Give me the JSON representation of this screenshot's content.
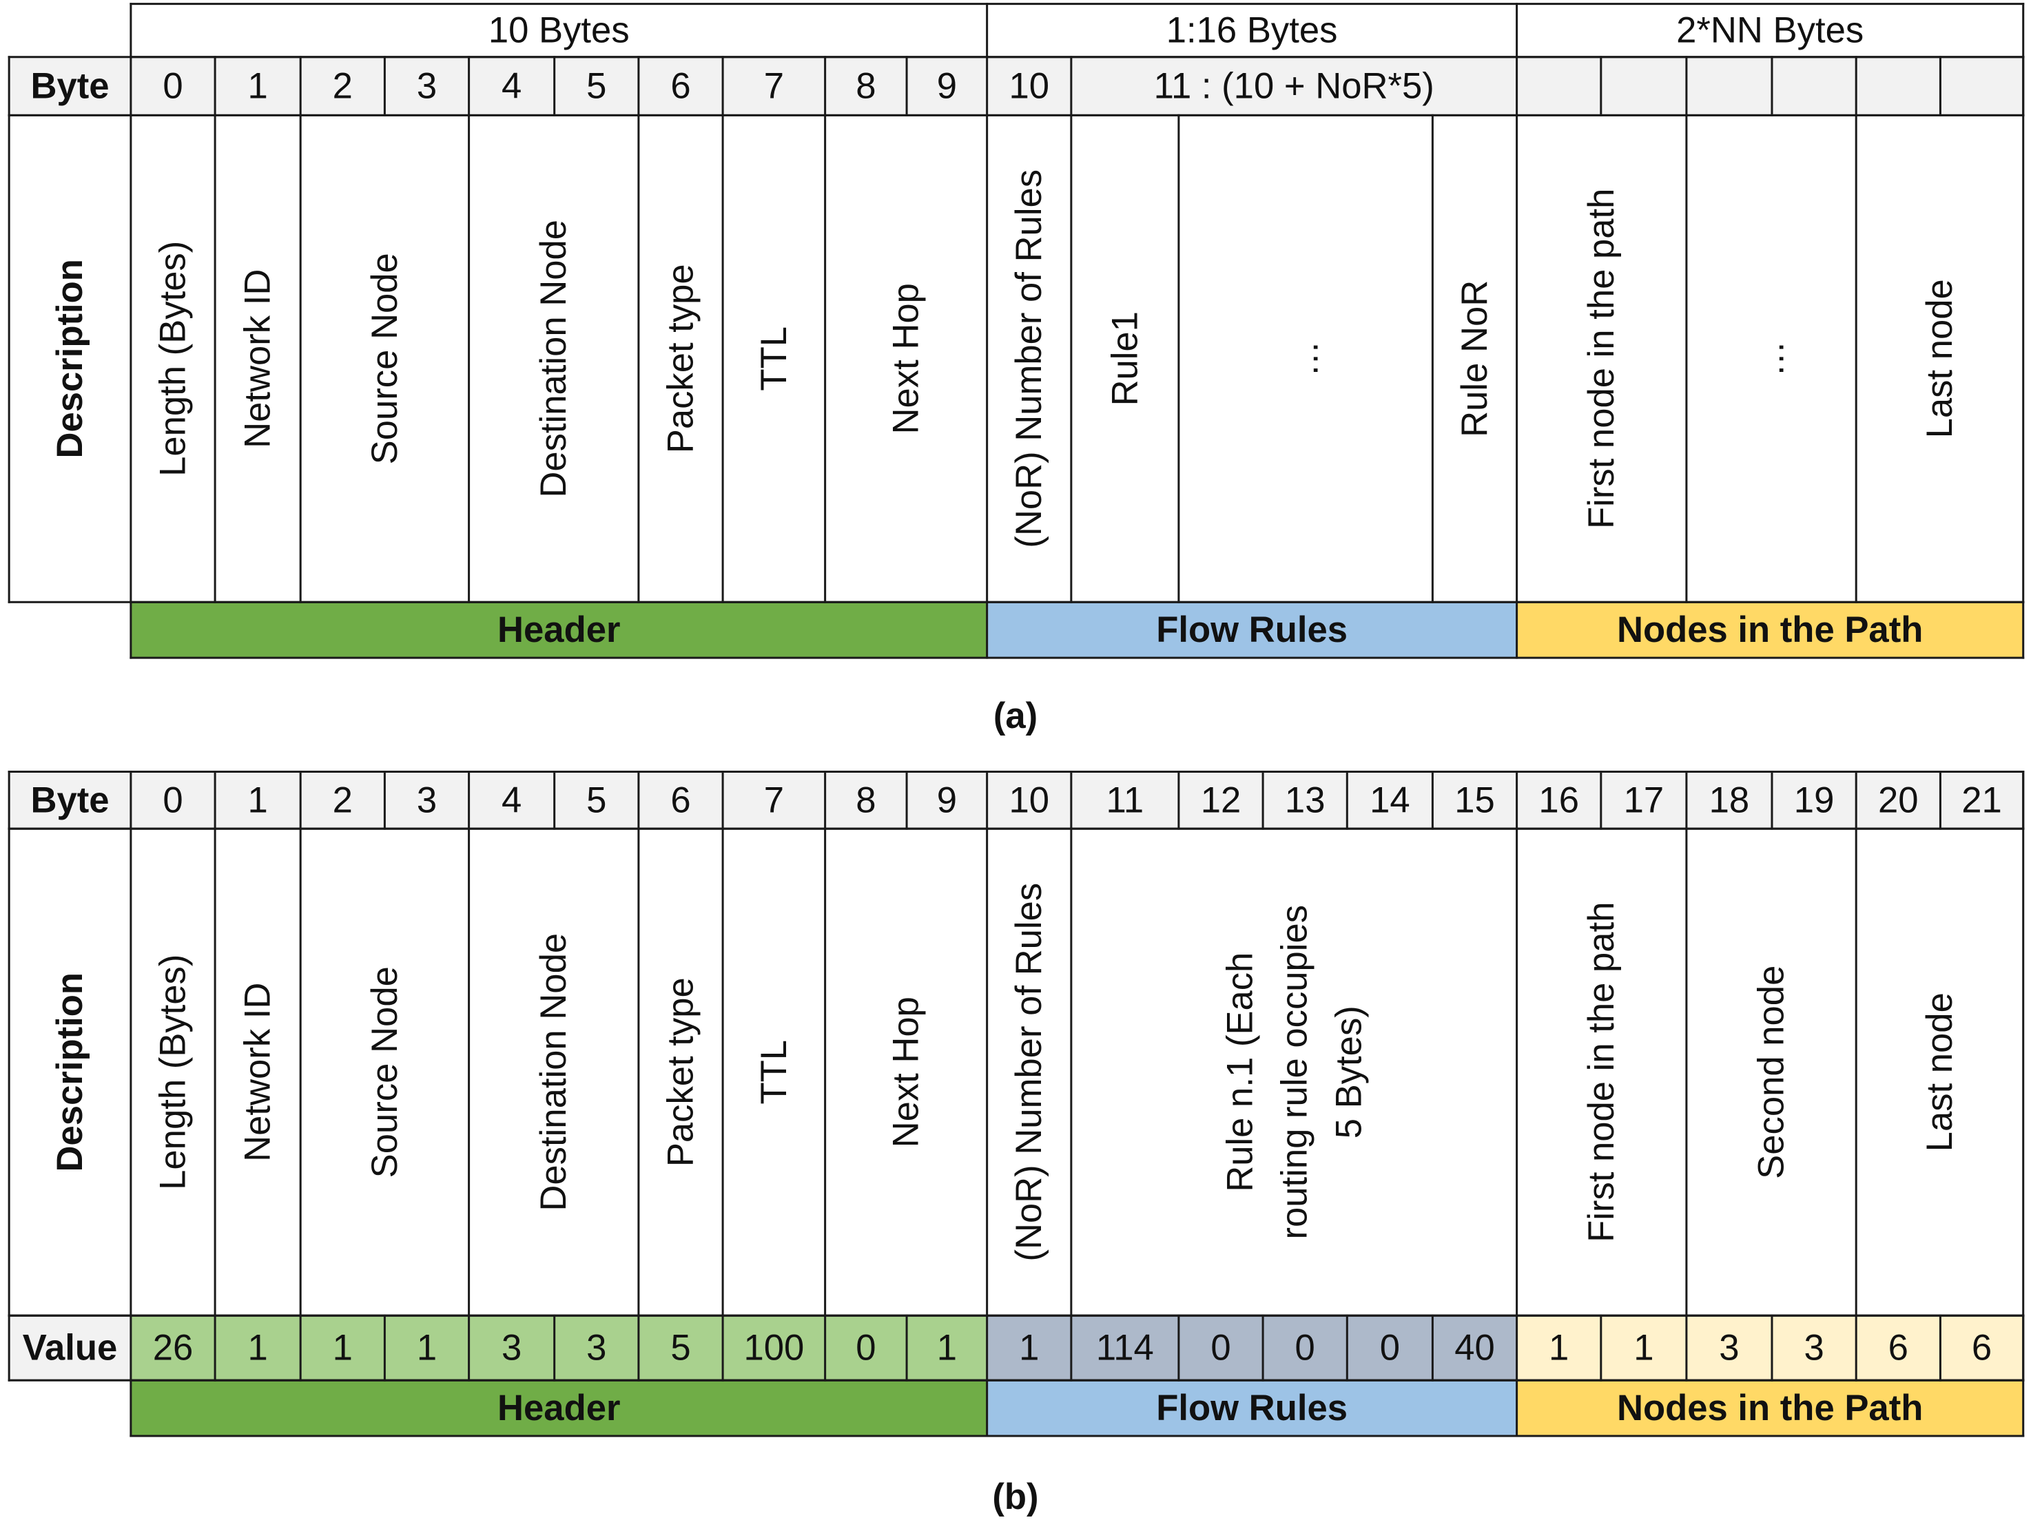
{
  "diagram_a": {
    "caption": "(a)",
    "size_headers": [
      "10 Bytes",
      "1:16 Bytes",
      "2*NN Bytes"
    ],
    "byte_row_label": "Byte",
    "byte_labels": [
      "0",
      "1",
      "2",
      "3",
      "4",
      "5",
      "6",
      "7",
      "8",
      "9",
      "10",
      "11 : (10 + NoR*5)"
    ],
    "description_label": "Description",
    "descriptions": [
      "Length (Bytes)",
      "Network ID",
      "Source Node",
      "Destination Node",
      "Packet type",
      "TTL",
      "Next Hop",
      "(NoR) Number of Rules",
      "Rule1",
      "…",
      "Rule NoR",
      "First node in the path",
      "…",
      "Last node"
    ],
    "sections": [
      "Header",
      "Flow Rules",
      "Nodes in the Path"
    ]
  },
  "diagram_b": {
    "caption": "(b)",
    "byte_row_label": "Byte",
    "byte_labels": [
      "0",
      "1",
      "2",
      "3",
      "4",
      "5",
      "6",
      "7",
      "8",
      "9",
      "10",
      "11",
      "12",
      "13",
      "14",
      "15",
      "16",
      "17",
      "18",
      "19",
      "20",
      "21"
    ],
    "description_label": "Description",
    "descriptions": [
      "Length (Bytes)",
      "Network ID",
      "Source Node",
      "Destination Node",
      "Packet type",
      "TTL",
      "Next Hop",
      "(NoR) Number of Rules",
      "Rule n.1 (Each routing rule occupies 5 Bytes)",
      "First node in the path",
      "Second node",
      "Last node"
    ],
    "value_row_label": "Value",
    "values": [
      "26",
      "1",
      "1",
      "1",
      "3",
      "3",
      "5",
      "100",
      "0",
      "1",
      "1",
      "114",
      "0",
      "0",
      "0",
      "40",
      "1",
      "1",
      "3",
      "3",
      "6",
      "6"
    ],
    "sections": [
      "Header",
      "Flow Rules",
      "Nodes in the Path"
    ]
  },
  "colors": {
    "header_dark": "#70ad47",
    "header_light": "#a9d18e",
    "flow_dark": "#9dc3e6",
    "flow_light": "#adb9ca",
    "nodes_dark": "#ffd966",
    "nodes_light": "#fff2cc",
    "row_bg": "#f2f2f2"
  }
}
